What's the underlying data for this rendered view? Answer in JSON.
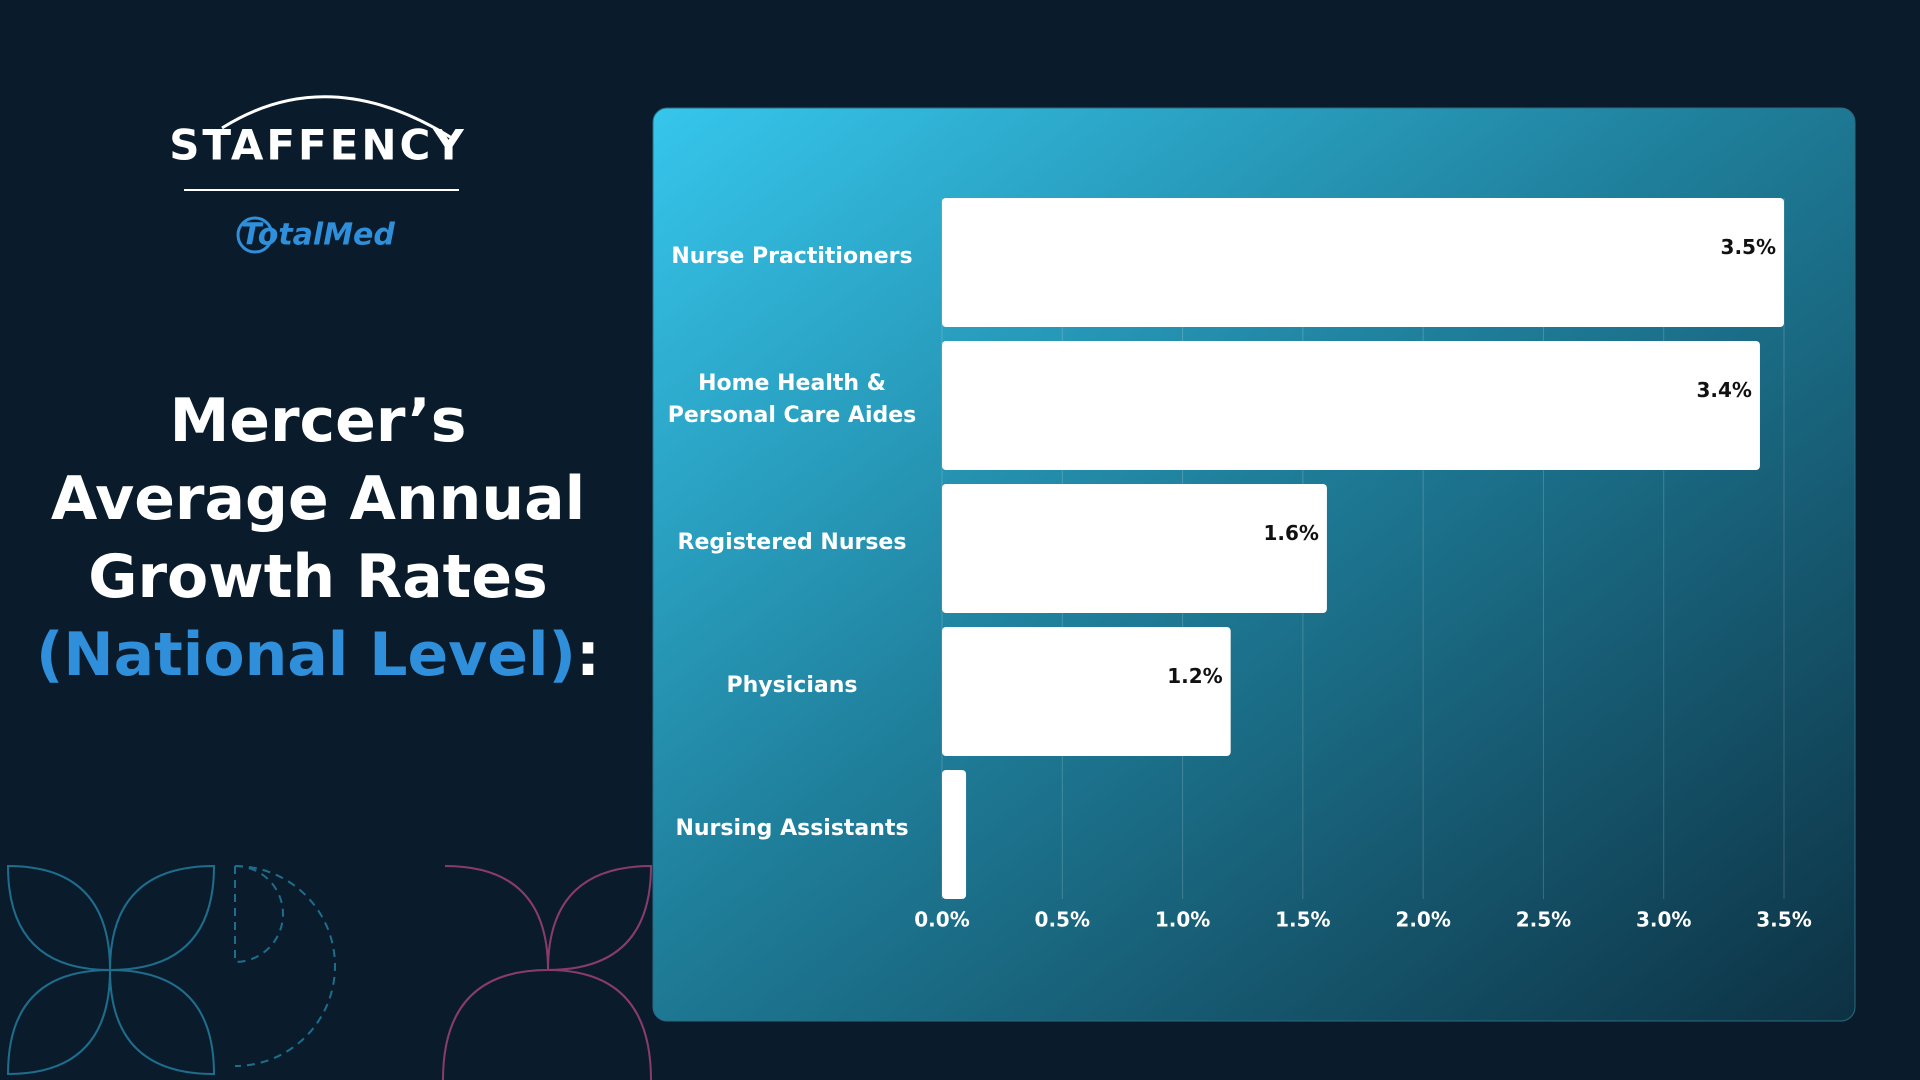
{
  "brand": {
    "name": "STAFFENCY",
    "partner": "TotalMed"
  },
  "chart_data": {
    "type": "bar",
    "orientation": "horizontal",
    "title_lines": [
      "Mercer’s",
      "Average Annual",
      "Growth Rates"
    ],
    "title_highlight": "(National Level)",
    "title_end": ":",
    "categories": [
      "Nurse Practitioners",
      "Home Health &\nPersonal Care Aides",
      "Registered Nurses",
      "Physicians",
      "Nursing Assistants"
    ],
    "values": [
      3.5,
      3.4,
      1.6,
      1.2,
      0.1
    ],
    "value_labels": [
      "3.5%",
      "3.4%",
      "1.6%",
      "1.2%",
      null
    ],
    "color": "#ffffff",
    "xlim": [
      0,
      3.5
    ],
    "xticks": [
      {
        "value": 0,
        "label": "0.0%"
      },
      {
        "value": 0.5,
        "label": "0.5%"
      },
      {
        "value": 1,
        "label": "1.0%"
      },
      {
        "value": 1.5,
        "label": "1.5%"
      },
      {
        "value": 2,
        "label": "2.0%"
      },
      {
        "value": 2.5,
        "label": "2.5%"
      },
      {
        "value": 3,
        "label": "3.0%"
      },
      {
        "value": 3.5,
        "label": "3.5%"
      }
    ],
    "grid": true
  }
}
